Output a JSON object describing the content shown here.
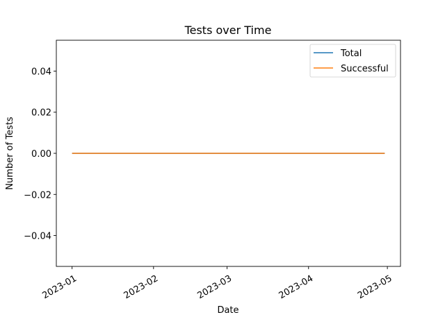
{
  "chart_data": {
    "type": "line",
    "title": "Tests over Time",
    "xlabel": "Date",
    "ylabel": "Number of Tests",
    "x": [
      "2023-01-01",
      "2023-04-30"
    ],
    "series": [
      {
        "name": "Total",
        "color": "#1f77b4",
        "x": [
          "2023-01-01",
          "2023-04-30"
        ],
        "values": [
          0,
          0
        ]
      },
      {
        "name": "Successful",
        "color": "#ff7f0e",
        "x": [
          "2023-01-01",
          "2023-04-30"
        ],
        "values": [
          0,
          0
        ]
      }
    ],
    "xlim": [
      "2022-12-26",
      "2023-05-06"
    ],
    "ylim": [
      -0.055,
      0.055
    ],
    "xticks": [
      "2023-01",
      "2023-02",
      "2023-03",
      "2023-04",
      "2023-05"
    ],
    "yticks": [
      "0.04",
      "0.02",
      "0.00",
      "−0.02",
      "−0.04"
    ],
    "legend_position": "top-right",
    "grid": false
  }
}
